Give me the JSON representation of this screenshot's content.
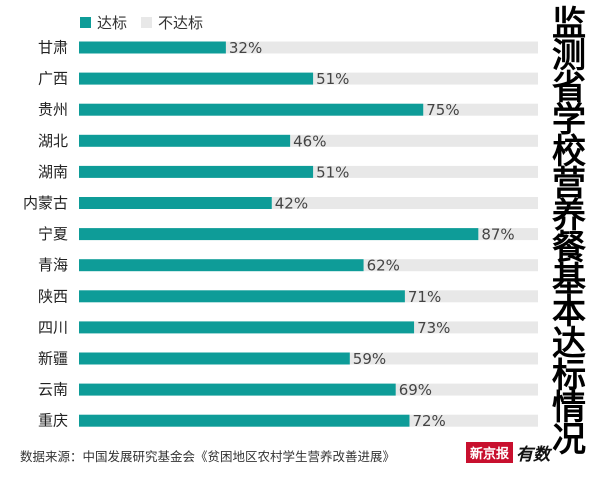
{
  "legend": {
    "met_label": "达标",
    "not_met_label": "不达标"
  },
  "title": "监测省学校营养餐基本达标情况",
  "source": "数据来源：中国发展研究基金会《贫困地区农村学生营养改善进展》",
  "logo": {
    "brand": "新京报",
    "script": "有数"
  },
  "colors": {
    "met": "#0e9c98",
    "not_met": "#e8e8e8"
  },
  "chart_data": {
    "type": "bar",
    "orientation": "horizontal",
    "stacked": true,
    "categories": [
      "甘肃",
      "广西",
      "贵州",
      "湖北",
      "湖南",
      "内蒙古",
      "宁夏",
      "青海",
      "陕西",
      "四川",
      "新疆",
      "云南",
      "重庆"
    ],
    "series": [
      {
        "name": "达标",
        "values": [
          32,
          51,
          75,
          46,
          51,
          42,
          87,
          62,
          71,
          73,
          59,
          69,
          72
        ]
      },
      {
        "name": "不达标",
        "values": [
          68,
          49,
          25,
          54,
          49,
          58,
          13,
          38,
          29,
          27,
          41,
          31,
          28
        ]
      }
    ],
    "data_labels": [
      "32%",
      "51%",
      "75%",
      "46%",
      "51%",
      "42%",
      "87%",
      "62%",
      "71%",
      "73%",
      "59%",
      "69%",
      "72%"
    ],
    "xlim": [
      0,
      100
    ],
    "grid": false,
    "legend_position": "top-left"
  }
}
